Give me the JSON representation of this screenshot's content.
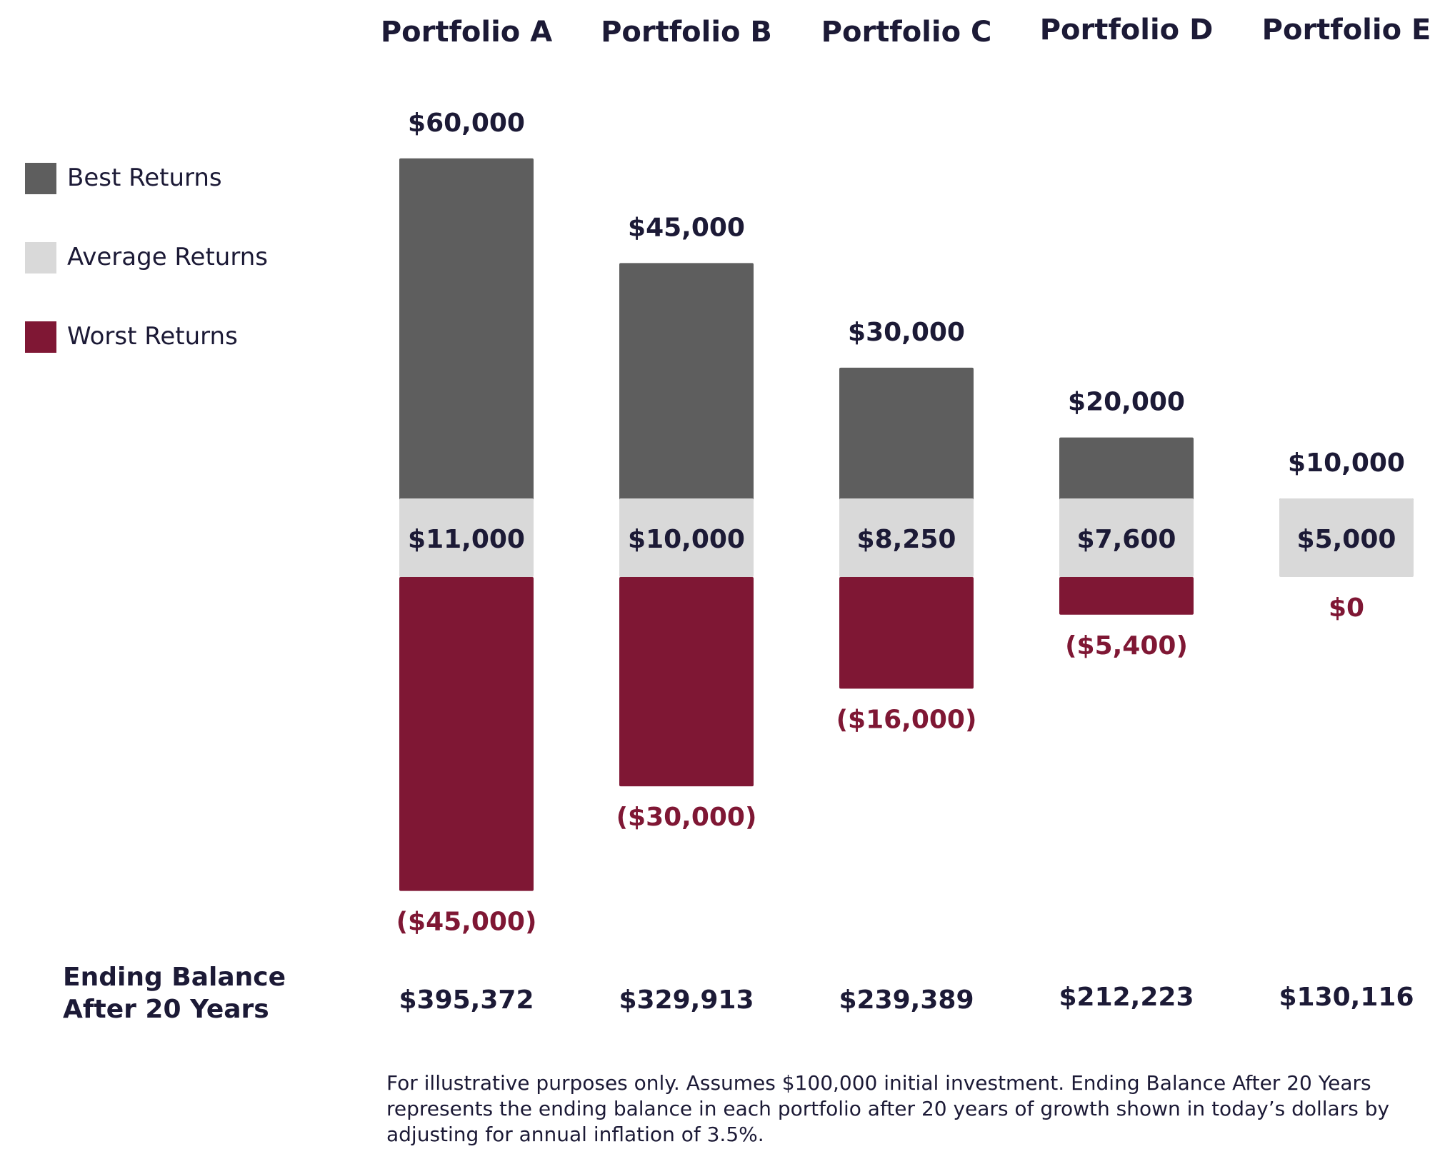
{
  "colors": {
    "best": "#5e5e5e",
    "average": "#d9d9d9",
    "worst": "#7f1734",
    "text": "#1c1a36",
    "negative_text": "#7f1734"
  },
  "chart_data": {
    "type": "bar",
    "subtype": "floating-stacked",
    "title": "",
    "categories": [
      "Portfolio A",
      "Portfolio B",
      "Portfolio C",
      "Portfolio D",
      "Portfolio E"
    ],
    "series": [
      {
        "name": "Best Returns",
        "values": [
          60000,
          45000,
          30000,
          20000,
          10000
        ],
        "labels": [
          "$60,000",
          "$45,000",
          "$30,000",
          "$20,000",
          "$10,000"
        ]
      },
      {
        "name": "Average Returns",
        "values": [
          11000,
          10000,
          8250,
          7600,
          5000
        ],
        "labels": [
          "$11,000",
          "$10,000",
          "$8,250",
          "$7,600",
          "$5,000"
        ]
      },
      {
        "name": "Worst Returns",
        "values": [
          -45000,
          -30000,
          -16000,
          -5400,
          0
        ],
        "labels": [
          "($45,000)",
          "($30,000)",
          "($16,000)",
          "($5,400)",
          "$0"
        ]
      }
    ],
    "ylim": [
      -50000,
      65000
    ],
    "grid": false,
    "legend": "left",
    "xlabel": "",
    "ylabel": ""
  },
  "ending_balance": {
    "label_line1": "Ending Balance",
    "label_line2": "After 20 Years",
    "values": [
      "$395,372",
      "$329,913",
      "$239,389",
      "$212,223",
      "$130,116"
    ]
  },
  "footnote": {
    "line1": "For illustrative purposes only. Assumes $100,000 initial investment. Ending Balance After 20 Years",
    "line2": "represents the ending balance in each portfolio after 20 years of growth shown in today’s dollars by",
    "line3": "adjusting for annual inflation of 3.5%."
  }
}
